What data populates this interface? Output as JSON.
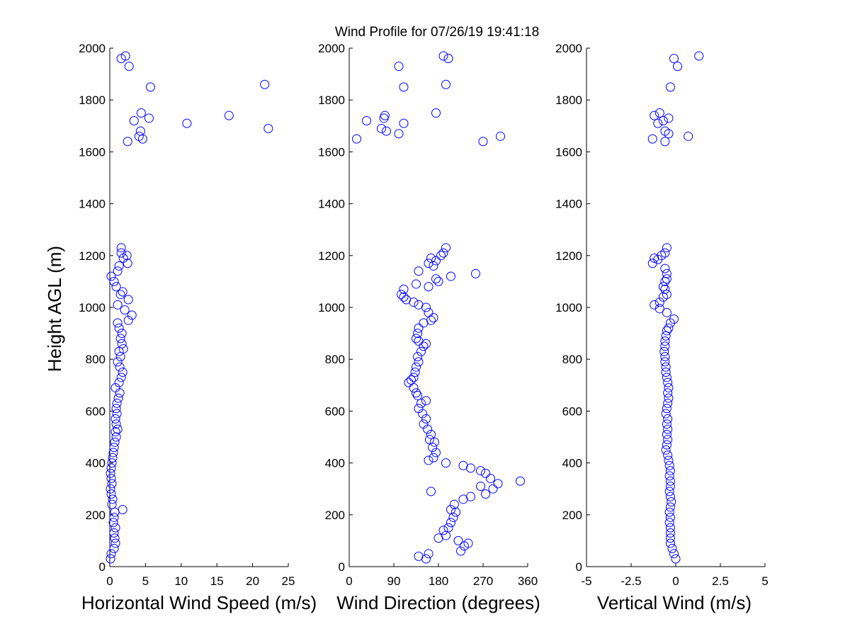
{
  "figure": {
    "title": "Wind Profile for  07/26/19 19:41:18",
    "ylabel": "Height AGL (m)",
    "marker_color": "#0000ff",
    "axis_color": "#000000"
  },
  "chart_data": [
    {
      "type": "scatter",
      "xlabel": "Horizontal Wind Speed (m/s)",
      "ylabel": "Height AGL (m)",
      "xlim": [
        0,
        25
      ],
      "ylim": [
        0,
        2000
      ],
      "xticks": [
        "0",
        "5",
        "10",
        "15",
        "20",
        "25"
      ],
      "yticks": [
        "0",
        "200",
        "400",
        "600",
        "800",
        "1000",
        "1200",
        "1400",
        "1600",
        "1800",
        "2000"
      ],
      "points": [
        [
          0.1,
          30
        ],
        [
          0.2,
          50
        ],
        [
          0.6,
          70
        ],
        [
          0.8,
          90
        ],
        [
          0.7,
          110
        ],
        [
          0.6,
          130
        ],
        [
          0.8,
          150
        ],
        [
          0.5,
          170
        ],
        [
          0.6,
          190
        ],
        [
          0.7,
          210
        ],
        [
          1.8,
          220
        ],
        [
          0.3,
          240
        ],
        [
          0.4,
          260
        ],
        [
          0.2,
          280
        ],
        [
          0.1,
          300
        ],
        [
          0.3,
          320
        ],
        [
          0.2,
          340
        ],
        [
          0.1,
          360
        ],
        [
          0.2,
          380
        ],
        [
          0.3,
          400
        ],
        [
          0.4,
          420
        ],
        [
          0.5,
          440
        ],
        [
          0.6,
          460
        ],
        [
          0.7,
          480
        ],
        [
          0.9,
          500
        ],
        [
          0.8,
          520
        ],
        [
          1.1,
          530
        ],
        [
          0.9,
          550
        ],
        [
          0.8,
          570
        ],
        [
          1.0,
          590
        ],
        [
          0.9,
          610
        ],
        [
          1.0,
          630
        ],
        [
          1.2,
          650
        ],
        [
          1.4,
          670
        ],
        [
          0.8,
          690
        ],
        [
          1.3,
          710
        ],
        [
          1.6,
          730
        ],
        [
          1.8,
          750
        ],
        [
          1.4,
          770
        ],
        [
          1.1,
          790
        ],
        [
          1.5,
          810
        ],
        [
          1.3,
          830
        ],
        [
          1.9,
          840
        ],
        [
          1.7,
          860
        ],
        [
          1.5,
          880
        ],
        [
          1.7,
          900
        ],
        [
          1.3,
          920
        ],
        [
          1.1,
          940
        ],
        [
          2.6,
          950
        ],
        [
          3.1,
          970
        ],
        [
          2.1,
          990
        ],
        [
          1.1,
          1010
        ],
        [
          2.6,
          1030
        ],
        [
          1.5,
          1050
        ],
        [
          1.8,
          1060
        ],
        [
          0.9,
          1080
        ],
        [
          0.6,
          1100
        ],
        [
          0.2,
          1120
        ],
        [
          1.1,
          1140
        ],
        [
          1.3,
          1160
        ],
        [
          2.5,
          1170
        ],
        [
          1.9,
          1190
        ],
        [
          2.4,
          1200
        ],
        [
          1.6,
          1210
        ],
        [
          1.6,
          1230
        ],
        [
          2.5,
          1640
        ],
        [
          4.6,
          1650
        ],
        [
          4.1,
          1660
        ],
        [
          4.3,
          1680
        ],
        [
          22.2,
          1690
        ],
        [
          10.8,
          1710
        ],
        [
          3.4,
          1720
        ],
        [
          5.5,
          1730
        ],
        [
          16.7,
          1740
        ],
        [
          4.4,
          1750
        ],
        [
          5.7,
          1850
        ],
        [
          21.7,
          1860
        ],
        [
          2.7,
          1930
        ],
        [
          1.6,
          1960
        ],
        [
          2.2,
          1970
        ]
      ]
    },
    {
      "type": "scatter",
      "xlabel": "Wind Direction (degrees)",
      "ylabel": "",
      "xlim": [
        0,
        360
      ],
      "ylim": [
        0,
        2000
      ],
      "xticks": [
        "0",
        "90",
        "180",
        "270",
        "360"
      ],
      "yticks": [
        "0",
        "200",
        "400",
        "600",
        "800",
        "1000",
        "1200",
        "1400",
        "1600",
        "1800",
        "2000"
      ],
      "points": [
        [
          140,
          40
        ],
        [
          155,
          30
        ],
        [
          160,
          50
        ],
        [
          225,
          60
        ],
        [
          232,
          80
        ],
        [
          240,
          90
        ],
        [
          220,
          100
        ],
        [
          180,
          110
        ],
        [
          195,
          120
        ],
        [
          190,
          140
        ],
        [
          200,
          150
        ],
        [
          205,
          170
        ],
        [
          210,
          190
        ],
        [
          215,
          210
        ],
        [
          205,
          220
        ],
        [
          212,
          240
        ],
        [
          230,
          260
        ],
        [
          245,
          270
        ],
        [
          165,
          290
        ],
        [
          275,
          280
        ],
        [
          290,
          300
        ],
        [
          265,
          310
        ],
        [
          300,
          320
        ],
        [
          345,
          330
        ],
        [
          285,
          340
        ],
        [
          275,
          360
        ],
        [
          265,
          370
        ],
        [
          245,
          380
        ],
        [
          230,
          390
        ],
        [
          195,
          400
        ],
        [
          160,
          410
        ],
        [
          170,
          420
        ],
        [
          175,
          440
        ],
        [
          168,
          460
        ],
        [
          172,
          480
        ],
        [
          162,
          490
        ],
        [
          165,
          510
        ],
        [
          158,
          530
        ],
        [
          150,
          550
        ],
        [
          155,
          570
        ],
        [
          148,
          590
        ],
        [
          140,
          610
        ],
        [
          145,
          630
        ],
        [
          155,
          640
        ],
        [
          138,
          660
        ],
        [
          135,
          670
        ],
        [
          130,
          690
        ],
        [
          120,
          710
        ],
        [
          125,
          720
        ],
        [
          130,
          730
        ],
        [
          133,
          750
        ],
        [
          135,
          770
        ],
        [
          140,
          790
        ],
        [
          138,
          810
        ],
        [
          145,
          830
        ],
        [
          150,
          850
        ],
        [
          155,
          860
        ],
        [
          140,
          870
        ],
        [
          135,
          880
        ],
        [
          138,
          900
        ],
        [
          140,
          920
        ],
        [
          150,
          940
        ],
        [
          165,
          950
        ],
        [
          170,
          960
        ],
        [
          160,
          980
        ],
        [
          155,
          1000
        ],
        [
          140,
          1010
        ],
        [
          130,
          1020
        ],
        [
          115,
          1030
        ],
        [
          110,
          1040
        ],
        [
          105,
          1050
        ],
        [
          110,
          1070
        ],
        [
          160,
          1080
        ],
        [
          135,
          1090
        ],
        [
          180,
          1100
        ],
        [
          175,
          1110
        ],
        [
          205,
          1120
        ],
        [
          255,
          1130
        ],
        [
          140,
          1140
        ],
        [
          170,
          1160
        ],
        [
          160,
          1170
        ],
        [
          175,
          1180
        ],
        [
          165,
          1190
        ],
        [
          185,
          1200
        ],
        [
          190,
          1210
        ],
        [
          195,
          1230
        ],
        [
          15,
          1650
        ],
        [
          305,
          1660
        ],
        [
          270,
          1640
        ],
        [
          100,
          1670
        ],
        [
          75,
          1680
        ],
        [
          65,
          1690
        ],
        [
          110,
          1710
        ],
        [
          35,
          1720
        ],
        [
          70,
          1730
        ],
        [
          72,
          1740
        ],
        [
          175,
          1750
        ],
        [
          110,
          1850
        ],
        [
          195,
          1860
        ],
        [
          100,
          1930
        ],
        [
          200,
          1960
        ],
        [
          190,
          1970
        ]
      ]
    },
    {
      "type": "scatter",
      "xlabel": "Vertical Wind (m/s)",
      "ylabel": "",
      "xlim": [
        -5,
        5
      ],
      "ylim": [
        0,
        2000
      ],
      "xticks": [
        "-5",
        "-2.5",
        "0",
        "2.5",
        "5"
      ],
      "yticks": [
        "0",
        "200",
        "400",
        "600",
        "800",
        "1000",
        "1200",
        "1400",
        "1600",
        "1800",
        "2000"
      ],
      "points": [
        [
          0.0,
          30
        ],
        [
          -0.1,
          50
        ],
        [
          -0.2,
          70
        ],
        [
          -0.3,
          90
        ],
        [
          -0.3,
          110
        ],
        [
          -0.3,
          130
        ],
        [
          -0.3,
          150
        ],
        [
          -0.35,
          170
        ],
        [
          -0.3,
          190
        ],
        [
          -0.35,
          210
        ],
        [
          -0.3,
          230
        ],
        [
          -0.25,
          250
        ],
        [
          -0.3,
          270
        ],
        [
          -0.35,
          290
        ],
        [
          -0.3,
          310
        ],
        [
          -0.3,
          330
        ],
        [
          -0.35,
          350
        ],
        [
          -0.3,
          370
        ],
        [
          -0.35,
          390
        ],
        [
          -0.4,
          410
        ],
        [
          -0.45,
          430
        ],
        [
          -0.55,
          450
        ],
        [
          -0.5,
          470
        ],
        [
          -0.45,
          490
        ],
        [
          -0.5,
          510
        ],
        [
          -0.45,
          530
        ],
        [
          -0.5,
          550
        ],
        [
          -0.45,
          570
        ],
        [
          -0.55,
          590
        ],
        [
          -0.5,
          610
        ],
        [
          -0.45,
          630
        ],
        [
          -0.4,
          650
        ],
        [
          -0.45,
          670
        ],
        [
          -0.4,
          690
        ],
        [
          -0.45,
          710
        ],
        [
          -0.5,
          730
        ],
        [
          -0.55,
          750
        ],
        [
          -0.55,
          770
        ],
        [
          -0.6,
          790
        ],
        [
          -0.6,
          810
        ],
        [
          -0.65,
          830
        ],
        [
          -0.6,
          850
        ],
        [
          -0.6,
          870
        ],
        [
          -0.55,
          890
        ],
        [
          -0.5,
          910
        ],
        [
          -0.4,
          920
        ],
        [
          -0.3,
          940
        ],
        [
          -0.1,
          955
        ],
        [
          -0.5,
          980
        ],
        [
          -0.9,
          995
        ],
        [
          -1.2,
          1010
        ],
        [
          -0.9,
          1020
        ],
        [
          -0.7,
          1040
        ],
        [
          -0.5,
          1050
        ],
        [
          -0.6,
          1070
        ],
        [
          -0.7,
          1080
        ],
        [
          -0.6,
          1100
        ],
        [
          -0.5,
          1110
        ],
        [
          -0.5,
          1130
        ],
        [
          -0.6,
          1150
        ],
        [
          -1.3,
          1170
        ],
        [
          -1.0,
          1185
        ],
        [
          -1.2,
          1190
        ],
        [
          -0.8,
          1200
        ],
        [
          -0.6,
          1210
        ],
        [
          -0.5,
          1230
        ],
        [
          -1.3,
          1650
        ],
        [
          0.7,
          1660
        ],
        [
          -0.6,
          1640
        ],
        [
          -0.4,
          1670
        ],
        [
          -0.6,
          1680
        ],
        [
          -1.0,
          1710
        ],
        [
          -0.7,
          1720
        ],
        [
          -0.4,
          1730
        ],
        [
          -1.2,
          1740
        ],
        [
          -0.9,
          1750
        ],
        [
          -0.3,
          1850
        ],
        [
          0.1,
          1930
        ],
        [
          -0.1,
          1960
        ],
        [
          1.3,
          1970
        ]
      ]
    }
  ]
}
